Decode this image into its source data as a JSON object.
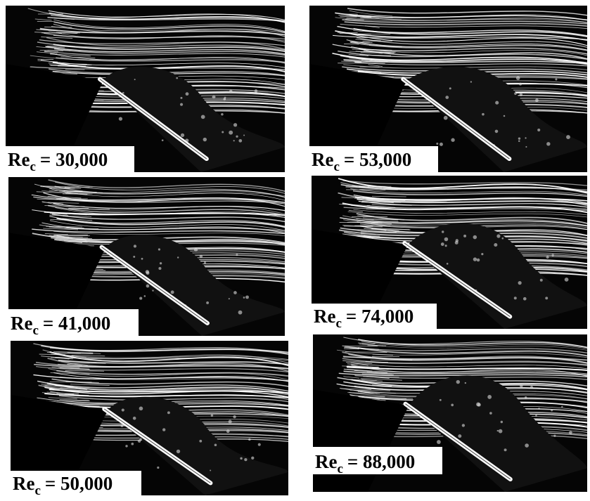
{
  "panels": [
    {
      "label": {
        "base": "Re",
        "subscript": "c",
        "value": "= 30,000"
      }
    },
    {
      "label": {
        "base": "Re",
        "subscript": "c",
        "value": "= 53,000"
      }
    },
    {
      "label": {
        "base": "Re",
        "subscript": "c",
        "value": "= 41,000"
      }
    },
    {
      "label": {
        "base": "Re",
        "subscript": "c",
        "value": "= 74,000"
      }
    },
    {
      "label": {
        "base": "Re",
        "subscript": "c",
        "value": "= 50,000"
      }
    },
    {
      "label": {
        "base": "Re",
        "subscript": "c",
        "value": "= 88,000"
      }
    }
  ]
}
